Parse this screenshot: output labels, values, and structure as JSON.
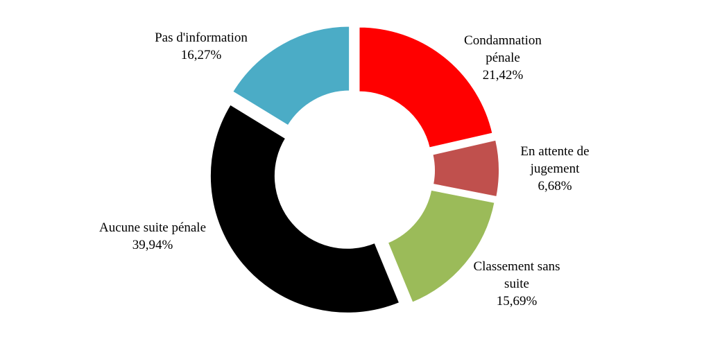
{
  "chart_data": {
    "type": "pie",
    "variant": "donut",
    "title": "",
    "legend": "none",
    "slices": [
      {
        "label": [
          "Condamnation",
          "pénale"
        ],
        "value_label": "21,42%",
        "value": 21.42,
        "color": "#ff0000"
      },
      {
        "label": [
          "En attente de",
          "jugement"
        ],
        "value_label": "6,68%",
        "value": 6.68,
        "color": "#c0504d"
      },
      {
        "label": [
          "Classement sans",
          "suite"
        ],
        "value_label": "15,69%",
        "value": 15.69,
        "color": "#9bbb59"
      },
      {
        "label": [
          "Aucune suite pénale"
        ],
        "value_label": "39,94%",
        "value": 39.94,
        "color": "#000000"
      },
      {
        "label": [
          "Pas d'information"
        ],
        "value_label": "16,27%",
        "value": 16.27,
        "color": "#4bacc6"
      }
    ]
  }
}
